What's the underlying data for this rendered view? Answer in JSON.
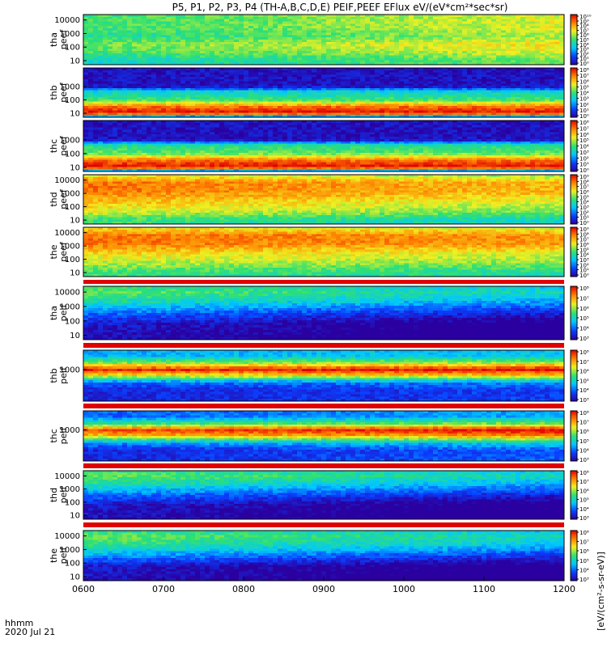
{
  "chart_data": {
    "type": "heatmap",
    "title": "P5, P1, P2, P3, P4 (TH-A,B,C,D,E) PEIF,PEEF EFlux eV/(eV*cm²*sec*sr)",
    "x_axis": {
      "label_top": "hhmm",
      "label_bottom": "2020 Jul 21",
      "tick_labels": [
        "0600",
        "0700",
        "0800",
        "0900",
        "1000",
        "1100",
        "1200"
      ],
      "range": [
        "0600",
        "1200"
      ]
    },
    "colorbar_label": "[eV/(cm²-s-sr-eV)]",
    "colormap": [
      "#2a00a0",
      "#0a40ff",
      "#00c8ff",
      "#30e070",
      "#f0f020",
      "#ff8000",
      "#e00000"
    ],
    "panels": [
      {
        "name_line1": "tha",
        "name_line2": "peef",
        "y_ticks": [
          "10000",
          "1000",
          "100",
          "10"
        ],
        "colorbar_ticks": [
          "10¹⁰",
          "10⁹",
          "10⁸",
          "10⁷",
          "10⁶",
          "10⁵",
          "10⁴",
          "10³",
          "10²",
          "10¹",
          "10⁰"
        ],
        "spectrum_log": [
          [
            1.0,
            0.4
          ],
          [
            1.6,
            0.5
          ],
          [
            2.2,
            0.55
          ],
          [
            2.8,
            0.45
          ],
          [
            3.4,
            0.5
          ],
          [
            4.2,
            0.5
          ]
        ],
        "trend": 0.15
      },
      {
        "name_line1": "thb",
        "name_line2": "peef",
        "y_ticks": [
          "1000",
          "100",
          "10"
        ],
        "colorbar_ticks": [
          "10⁸",
          "10⁷",
          "10⁶",
          "10⁵",
          "10⁴",
          "10³",
          "10²",
          "10¹",
          "10⁰"
        ],
        "spectrum_log": [
          [
            0.7,
            0.05
          ],
          [
            1.0,
            1.0
          ],
          [
            1.5,
            0.85
          ],
          [
            2.0,
            0.5
          ],
          [
            2.6,
            0.4
          ],
          [
            3.0,
            0.05
          ]
        ],
        "trend": 0.0
      },
      {
        "name_line1": "thc",
        "name_line2": "peef",
        "y_ticks": [
          "1000",
          "100",
          "10"
        ],
        "colorbar_ticks": [
          "10⁸",
          "10⁷",
          "10⁶",
          "10⁵",
          "10⁴",
          "10³",
          "10²",
          "10¹",
          "10⁰"
        ],
        "spectrum_log": [
          [
            0.7,
            0.05
          ],
          [
            1.0,
            1.0
          ],
          [
            1.5,
            0.85
          ],
          [
            2.0,
            0.55
          ],
          [
            2.6,
            0.45
          ],
          [
            3.0,
            0.05
          ]
        ],
        "trend": 0.0
      },
      {
        "name_line1": "thd",
        "name_line2": "peef",
        "y_ticks": [
          "10000",
          "1000",
          "100",
          "10"
        ],
        "colorbar_ticks": [
          "10⁹",
          "10⁸",
          "10⁷",
          "10⁶",
          "10⁵",
          "10⁴",
          "10³",
          "10²",
          "10¹",
          "10⁰"
        ],
        "spectrum_log": [
          [
            1.0,
            0.5
          ],
          [
            1.6,
            0.65
          ],
          [
            2.4,
            0.75
          ],
          [
            3.2,
            0.85
          ],
          [
            3.8,
            0.85
          ],
          [
            4.3,
            0.7
          ]
        ],
        "trend": -0.1
      },
      {
        "name_line1": "the",
        "name_line2": "peef",
        "y_ticks": [
          "10000",
          "1000",
          "100",
          "10"
        ],
        "colorbar_ticks": [
          "10⁹",
          "10⁸",
          "10⁷",
          "10⁶",
          "10⁵",
          "10⁴",
          "10³",
          "10²",
          "10¹",
          "10⁰"
        ],
        "spectrum_log": [
          [
            1.0,
            0.5
          ],
          [
            1.6,
            0.6
          ],
          [
            2.4,
            0.7
          ],
          [
            3.2,
            0.85
          ],
          [
            3.8,
            0.85
          ],
          [
            4.3,
            0.7
          ]
        ],
        "trend": -0.05
      },
      {
        "name_line1": "tha",
        "name_line2": "peif",
        "y_ticks": [
          "10000",
          "1000",
          "100",
          "10"
        ],
        "colorbar_ticks": [
          "10⁸",
          "10⁷",
          "10⁶",
          "10⁵",
          "10⁴",
          "10³"
        ],
        "spectrum_log": [
          [
            1.0,
            0.05
          ],
          [
            1.8,
            0.08
          ],
          [
            2.6,
            0.25
          ],
          [
            3.4,
            0.45
          ],
          [
            4.0,
            0.55
          ],
          [
            4.3,
            0.5
          ]
        ],
        "trend": -0.15
      },
      {
        "name_line1": "thb",
        "name_line2": "peif",
        "y_ticks": [
          "1000"
        ],
        "colorbar_ticks": [
          "10⁸",
          "10⁷",
          "10⁶",
          "10⁵",
          "10⁴",
          "10³"
        ],
        "spectrum_log": [
          [
            1.5,
            0.1
          ],
          [
            2.0,
            0.2
          ],
          [
            2.6,
            0.7
          ],
          [
            3.0,
            0.95
          ],
          [
            3.4,
            0.6
          ],
          [
            4.0,
            0.3
          ]
        ],
        "trend": 0.05
      },
      {
        "name_line1": "thc",
        "name_line2": "peif",
        "y_ticks": [
          "1000"
        ],
        "colorbar_ticks": [
          "10⁸",
          "10⁷",
          "10⁶",
          "10⁵",
          "10⁴",
          "10³"
        ],
        "spectrum_log": [
          [
            1.5,
            0.1
          ],
          [
            2.0,
            0.25
          ],
          [
            2.6,
            0.75
          ],
          [
            3.0,
            0.9
          ],
          [
            3.4,
            0.5
          ],
          [
            4.0,
            0.2
          ]
        ],
        "trend": 0.1
      },
      {
        "name_line1": "thd",
        "name_line2": "peif",
        "y_ticks": [
          "10000",
          "1000",
          "100",
          "10"
        ],
        "colorbar_ticks": [
          "10⁸",
          "10⁷",
          "10⁶",
          "10⁵",
          "10⁴",
          "10³"
        ],
        "spectrum_log": [
          [
            1.0,
            0.05
          ],
          [
            1.8,
            0.08
          ],
          [
            2.6,
            0.25
          ],
          [
            3.4,
            0.45
          ],
          [
            4.0,
            0.55
          ],
          [
            4.3,
            0.5
          ]
        ],
        "trend": -0.15
      },
      {
        "name_line1": "the",
        "name_line2": "peif",
        "y_ticks": [
          "10000",
          "1000",
          "100",
          "10"
        ],
        "colorbar_ticks": [
          "10⁸",
          "10⁷",
          "10⁶",
          "10⁵",
          "10⁴",
          "10³"
        ],
        "spectrum_log": [
          [
            1.0,
            0.05
          ],
          [
            1.8,
            0.08
          ],
          [
            2.6,
            0.3
          ],
          [
            3.4,
            0.5
          ],
          [
            4.0,
            0.55
          ],
          [
            4.3,
            0.5
          ]
        ],
        "trend": -0.15
      }
    ]
  }
}
